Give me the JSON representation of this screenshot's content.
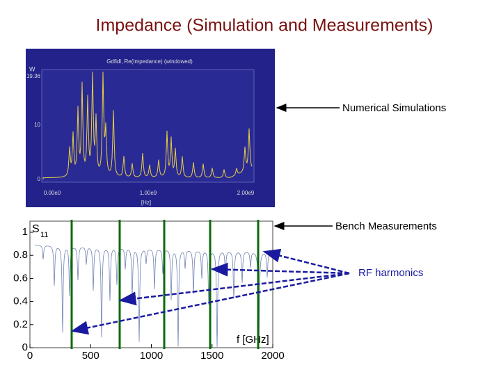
{
  "title": "Impedance (Simulation and Measurements)",
  "simulation_panel": {
    "plot_title": "Gdfidl, Re(Impedance) (windowed)",
    "y_unit": "W",
    "yticks": [
      "19.36",
      "10",
      "0"
    ],
    "xticks": [
      "0.00e0",
      "1.00e9",
      "2.00e9"
    ],
    "xlabel": "[Hz]"
  },
  "measurement_panel": {
    "ylabel": "S",
    "ylabel_sub": "11",
    "yticks": [
      "0",
      "0.2",
      "0.4",
      "0.6",
      "0.8",
      "1"
    ],
    "xticks": [
      "0",
      "500",
      "1000",
      "1500",
      "2000"
    ],
    "xlabel": "f [GHz]"
  },
  "annotations": {
    "simulation": "Numerical Simulations",
    "measurement": "Bench Measurements",
    "harmonics": "RF harmonics"
  }
}
